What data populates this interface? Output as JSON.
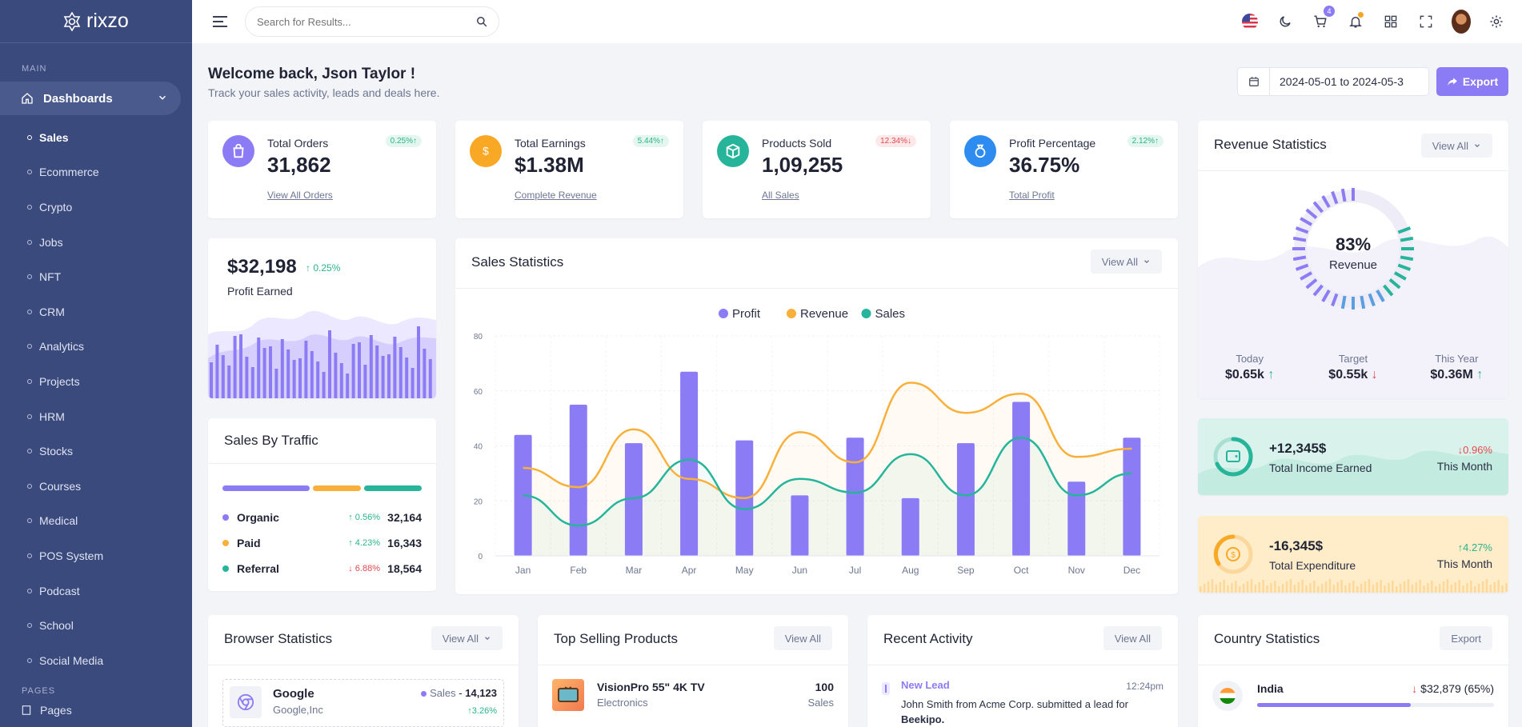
{
  "brand": {
    "name": "rixzo"
  },
  "sidebar": {
    "section_main": "MAIN",
    "main_item": "Dashboards",
    "items": [
      {
        "label": "Sales",
        "active": true
      },
      {
        "label": "Ecommerce"
      },
      {
        "label": "Crypto"
      },
      {
        "label": "Jobs"
      },
      {
        "label": "NFT"
      },
      {
        "label": "CRM"
      },
      {
        "label": "Analytics"
      },
      {
        "label": "Projects"
      },
      {
        "label": "HRM"
      },
      {
        "label": "Stocks"
      },
      {
        "label": "Courses"
      },
      {
        "label": "Medical"
      },
      {
        "label": "POS System"
      },
      {
        "label": "Podcast"
      },
      {
        "label": "School"
      },
      {
        "label": "Social Media"
      }
    ],
    "section_pages": "PAGES",
    "pages_item": "Pages"
  },
  "topbar": {
    "search_placeholder": "Search for Results...",
    "cart_count": "4"
  },
  "header": {
    "title": "Welcome back, Json Taylor !",
    "subtitle": "Track your sales activity, leads and deals here.",
    "date_range": "2024-05-01 to 2024-05-3",
    "export_label": "Export"
  },
  "stats": [
    {
      "label": "Total Orders",
      "value": "31,862",
      "change": "0.25%",
      "dir": "up",
      "link": "View All Orders",
      "color": "#8b7cf6"
    },
    {
      "label": "Total Earnings",
      "value": "$1.38M",
      "change": "5.44%",
      "dir": "up",
      "link": "Complete Revenue",
      "color": "#f9a825"
    },
    {
      "label": "Products Sold",
      "value": "1,09,255",
      "change": "12.34%",
      "dir": "down",
      "link": "All Sales",
      "color": "#26b59a"
    },
    {
      "label": "Profit Percentage",
      "value": "36.75%",
      "change": "2.12%",
      "dir": "up",
      "link": "Total Profit",
      "color": "#2e8cf0"
    }
  ],
  "profit": {
    "value": "$32,198",
    "change": "0.25%",
    "label": "Profit Earned"
  },
  "traffic": {
    "title": "Sales By Traffic",
    "rows": [
      {
        "name": "Organic",
        "change": "0.56%",
        "dir": "up",
        "value": "32,164",
        "color": "#8b7cf6"
      },
      {
        "name": "Paid",
        "change": "4.23%",
        "dir": "up",
        "value": "16,343",
        "color": "#f9b03b"
      },
      {
        "name": "Referral",
        "change": "6.88%",
        "dir": "down",
        "value": "18,564",
        "color": "#26b59a"
      }
    ]
  },
  "sales_stats": {
    "title": "Sales Statistics",
    "view_all": "View All"
  },
  "chart_data": {
    "type": "bar",
    "title": "Sales Statistics",
    "categories": [
      "Jan",
      "Feb",
      "Mar",
      "Apr",
      "May",
      "Jun",
      "Jul",
      "Aug",
      "Sep",
      "Oct",
      "Nov",
      "Dec"
    ],
    "series": [
      {
        "name": "Profit",
        "type": "bar",
        "color": "#8b7cf6",
        "values": [
          44,
          55,
          41,
          67,
          42,
          22,
          43,
          21,
          41,
          56,
          27,
          43
        ]
      },
      {
        "name": "Revenue",
        "type": "line",
        "color": "#f9b03b",
        "values": [
          32,
          25,
          46,
          28,
          21,
          45,
          34,
          63,
          52,
          59,
          36,
          39
        ]
      },
      {
        "name": "Sales",
        "type": "line",
        "color": "#26b59a",
        "values": [
          22,
          11,
          21,
          35,
          17,
          28,
          23,
          37,
          22,
          43,
          22,
          30
        ]
      }
    ],
    "ylim": [
      0,
      80
    ],
    "yticks": [
      0,
      20,
      40,
      60,
      80
    ],
    "legend": "top-center",
    "grid": true
  },
  "revenue": {
    "title": "Revenue Statistics",
    "view_all": "View All",
    "percent": "83%",
    "percent_value": 83,
    "label": "Revenue",
    "cols": [
      {
        "label": "Today",
        "value": "$0.65k",
        "dir": "up"
      },
      {
        "label": "Target",
        "value": "$0.55k",
        "dir": "down"
      },
      {
        "label": "This Year",
        "value": "$0.36M",
        "dir": "up"
      }
    ]
  },
  "income": {
    "value": "+12,345$",
    "label": "Total Income Earned",
    "change": "0.96%",
    "dir": "down",
    "period": "This Month"
  },
  "expenditure": {
    "value": "-16,345$",
    "label": "Total Expenditure",
    "change": "4.27%",
    "dir": "up",
    "period": "This Month"
  },
  "browser": {
    "title": "Browser Statistics",
    "view_all": "View All",
    "name": "Google",
    "sub": "Google,Inc",
    "sales_label": "Sales",
    "sales_value": "14,123",
    "change": "3.26%"
  },
  "top_products": {
    "title": "Top Selling Products",
    "view_all": "View All",
    "name": "VisionPro 55\" 4K TV",
    "category": "Electronics",
    "count": "100",
    "count_label": "Sales"
  },
  "activity": {
    "title": "Recent Activity",
    "view_all": "View All",
    "event": "New Lead",
    "time": "12:24pm",
    "text": "John Smith from Acme Corp. submitted a lead for",
    "bold": "Beekipo."
  },
  "country": {
    "title": "Country Statistics",
    "export": "Export",
    "name": "India",
    "value": "$32,879 (65%)",
    "progress": 65
  }
}
